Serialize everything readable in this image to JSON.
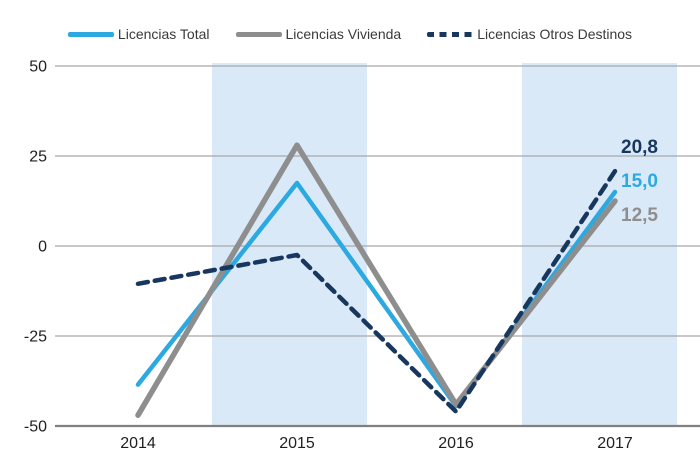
{
  "legend": {
    "items": [
      {
        "label": "Licencias Total",
        "color": "#2BA9E0",
        "style": "solid"
      },
      {
        "label": "Licencias Vivienda",
        "color": "#8E8E8E",
        "style": "solid"
      },
      {
        "label": "Licencias Otros Destinos",
        "color": "#17375E",
        "style": "dashed"
      }
    ]
  },
  "chart_data": {
    "type": "line",
    "categories": [
      "2014",
      "2015",
      "2016",
      "2017"
    ],
    "series": [
      {
        "name": "Licencias Total",
        "color": "#2BA9E0",
        "dash": null,
        "width": 4.5,
        "values": [
          -38.5,
          17.5,
          -44.5,
          15.0
        ]
      },
      {
        "name": "Licencias Vivienda",
        "color": "#8E8E8E",
        "dash": null,
        "width": 5.5,
        "values": [
          -47.0,
          28.0,
          -44.0,
          12.5
        ]
      },
      {
        "name": "Licencias Otros Destinos",
        "color": "#17375E",
        "dash": "10 7",
        "width": 4.5,
        "values": [
          -10.5,
          -2.5,
          -46.0,
          20.8
        ]
      }
    ],
    "end_labels": [
      {
        "text": "20,8",
        "color": "#17375E"
      },
      {
        "text": "15,0",
        "color": "#2BA9E0"
      },
      {
        "text": "12,5",
        "color": "#8E8E8E"
      }
    ],
    "yticks": [
      50,
      25,
      0,
      -25,
      -50
    ],
    "ylim": [
      -50,
      50
    ],
    "highlighted_categories": [
      "2015",
      "2017"
    ],
    "band_color": "#DAE9F7",
    "grid_color": "#A8A8A8",
    "axis_color": "#808080",
    "tick_label_color": "#1f1f1f",
    "grid": true,
    "legend_position": "top"
  }
}
